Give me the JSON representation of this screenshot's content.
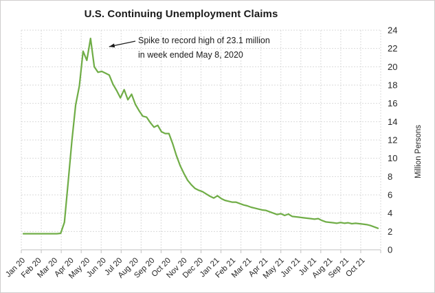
{
  "title": "U.S. Continuing Unemployment Claims",
  "annotation": {
    "line1": "Spike to record high of 23.1 million",
    "line2": "in week ended May 8, 2020"
  },
  "y_axis": {
    "title": "Million Persons",
    "min": 0,
    "max": 24,
    "tick_step": 2,
    "tick_labels": [
      "0",
      "2",
      "4",
      "6",
      "8",
      "10",
      "12",
      "14",
      "16",
      "18",
      "20",
      "22",
      "24"
    ]
  },
  "x_axis": {
    "tick_labels": [
      "Jan 20",
      "Feb 20",
      "Mar 20",
      "Apr 20",
      "May 20",
      "Jun 20",
      "Jul 20",
      "Aug 20",
      "Sep 20",
      "Oct 20",
      "Nov 20",
      "Dec 20",
      "Jan 21",
      "Feb 21",
      "Mar 21",
      "Apr 21",
      "May 21",
      "Jun 21",
      "Jul 21",
      "Aug 21",
      "Sep 21",
      "Oct 21"
    ]
  },
  "chart_data": {
    "type": "line",
    "title": "U.S. Continuing Unemployment Claims",
    "ylabel": "Million Persons",
    "ylim": [
      0,
      24
    ],
    "grid": true,
    "legend": "none",
    "frequency": "weekly",
    "x_range_labels": [
      "Jan 20",
      "Oct 21"
    ],
    "peak": {
      "value": 23.1,
      "week_ended": "May 8, 2020"
    },
    "series": [
      {
        "name": "Continuing unemployment claims (million persons)",
        "color": "#70AD47",
        "values": [
          1.75,
          1.75,
          1.75,
          1.75,
          1.75,
          1.75,
          1.75,
          1.75,
          1.75,
          1.75,
          1.8,
          3.0,
          7.4,
          11.9,
          15.8,
          17.9,
          21.7,
          20.7,
          23.1,
          20.0,
          19.4,
          19.5,
          19.3,
          19.1,
          18.1,
          17.4,
          16.6,
          17.5,
          16.4,
          17.0,
          15.9,
          15.2,
          14.6,
          14.5,
          13.9,
          13.4,
          13.6,
          12.9,
          12.7,
          12.7,
          11.6,
          10.3,
          9.2,
          8.35,
          7.6,
          7.1,
          6.7,
          6.5,
          6.35,
          6.1,
          5.85,
          5.65,
          5.9,
          5.6,
          5.4,
          5.3,
          5.2,
          5.2,
          5.05,
          4.9,
          4.8,
          4.65,
          4.55,
          4.45,
          4.35,
          4.3,
          4.15,
          4.0,
          3.85,
          3.95,
          3.75,
          3.9,
          3.65,
          3.6,
          3.55,
          3.5,
          3.45,
          3.4,
          3.35,
          3.4,
          3.2,
          3.05,
          3.0,
          2.95,
          2.9,
          2.98,
          2.9,
          2.95,
          2.85,
          2.9,
          2.85,
          2.8,
          2.75,
          2.65,
          2.5,
          2.35
        ]
      }
    ]
  },
  "colors": {
    "line": "#70AD47",
    "grid": "#D9D9D9",
    "axis": "#BFBFBF",
    "tick_text": "#262626",
    "annotation_arrow": "#1a1a1a",
    "background": "#FFFFFF",
    "border": "#CFCDCD"
  }
}
